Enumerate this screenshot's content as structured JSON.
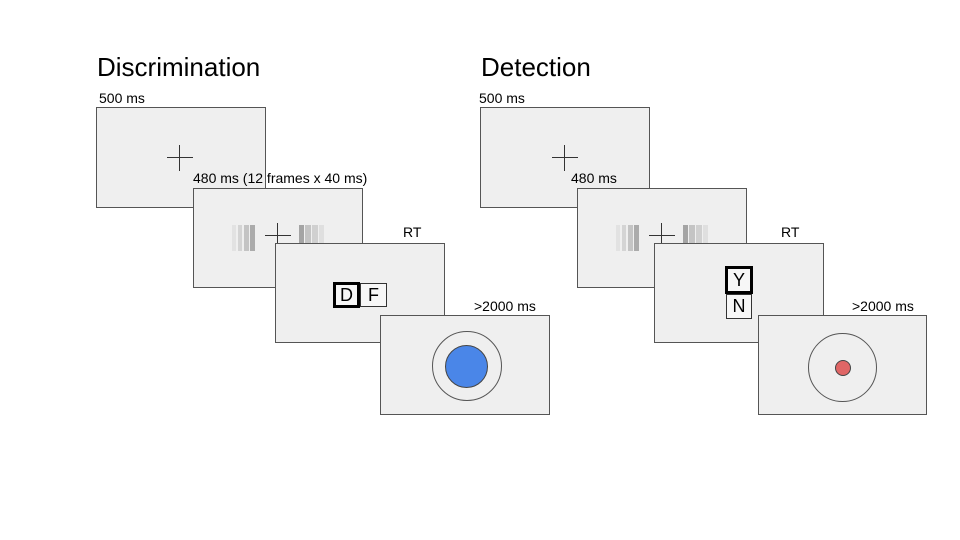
{
  "discrimination": {
    "title": "Discrimination",
    "fixation_label": "500 ms",
    "stimulus_label": "480 ms (12 frames x 40 ms)",
    "response_label": "RT",
    "feedback_label": ">2000 ms",
    "keys": [
      "D",
      "F"
    ],
    "selected_key": "D",
    "feedback_color": "#4a86e8"
  },
  "detection": {
    "title": "Detection",
    "fixation_label": "500 ms",
    "stimulus_label": "480 ms",
    "response_label": "RT",
    "feedback_label": ">2000 ms",
    "keys": [
      "Y",
      "N"
    ],
    "selected_key": "Y",
    "feedback_color": "#e06666"
  }
}
